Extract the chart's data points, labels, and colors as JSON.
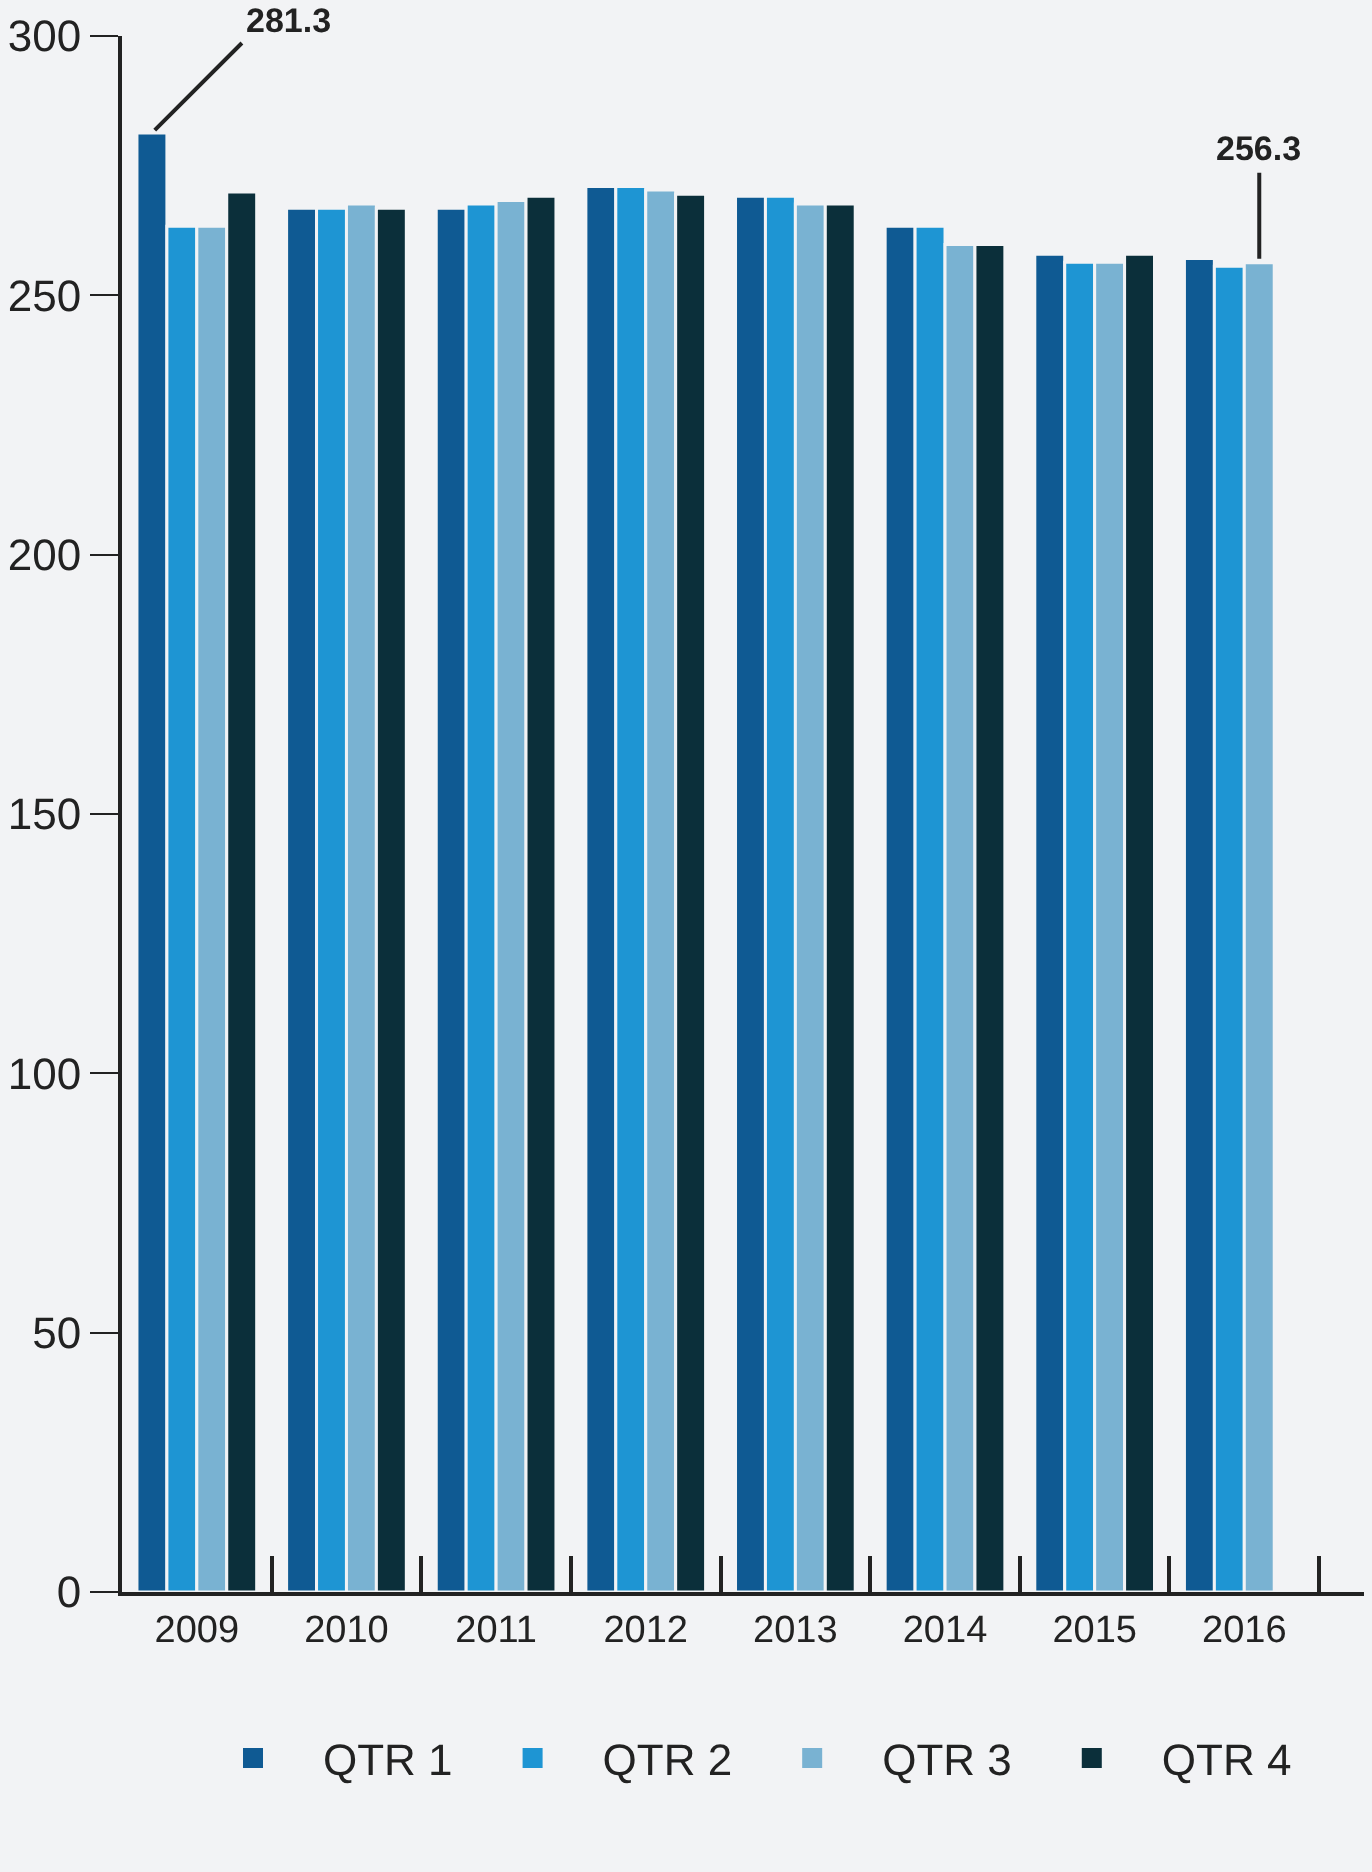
{
  "chart_data": {
    "type": "bar",
    "categories": [
      "2009",
      "2010",
      "2011",
      "2012",
      "2013",
      "2014",
      "2015",
      "2016"
    ],
    "series": [
      {
        "name": "QTR 1",
        "color": "#0f5a93",
        "values": [
          281.3,
          266.8,
          266.8,
          271.0,
          269.1,
          263.3,
          257.9,
          257.1
        ],
        "value_labels": [
          "281.3",
          null,
          null,
          null,
          null,
          null,
          null,
          null
        ]
      },
      {
        "name": "QTR 2",
        "color": "#1e95d3",
        "values": [
          263.3,
          266.8,
          267.6,
          271.0,
          269.1,
          263.3,
          256.4,
          255.6
        ]
      },
      {
        "name": "QTR 3",
        "color": "#79b2d2",
        "values": [
          263.3,
          267.6,
          268.3,
          270.3,
          267.6,
          259.8,
          256.4,
          256.3
        ],
        "value_labels": [
          null,
          null,
          null,
          null,
          null,
          null,
          null,
          "256.3"
        ]
      },
      {
        "name": "QTR 4",
        "color": "#0b2f3a",
        "values": [
          269.9,
          266.8,
          269.1,
          269.5,
          267.6,
          259.8,
          257.9,
          null
        ]
      }
    ],
    "ylim": [
      0,
      300
    ],
    "yticks": [
      0,
      50,
      100,
      150,
      200,
      250,
      300
    ],
    "grid": false,
    "legend": "bottom"
  }
}
